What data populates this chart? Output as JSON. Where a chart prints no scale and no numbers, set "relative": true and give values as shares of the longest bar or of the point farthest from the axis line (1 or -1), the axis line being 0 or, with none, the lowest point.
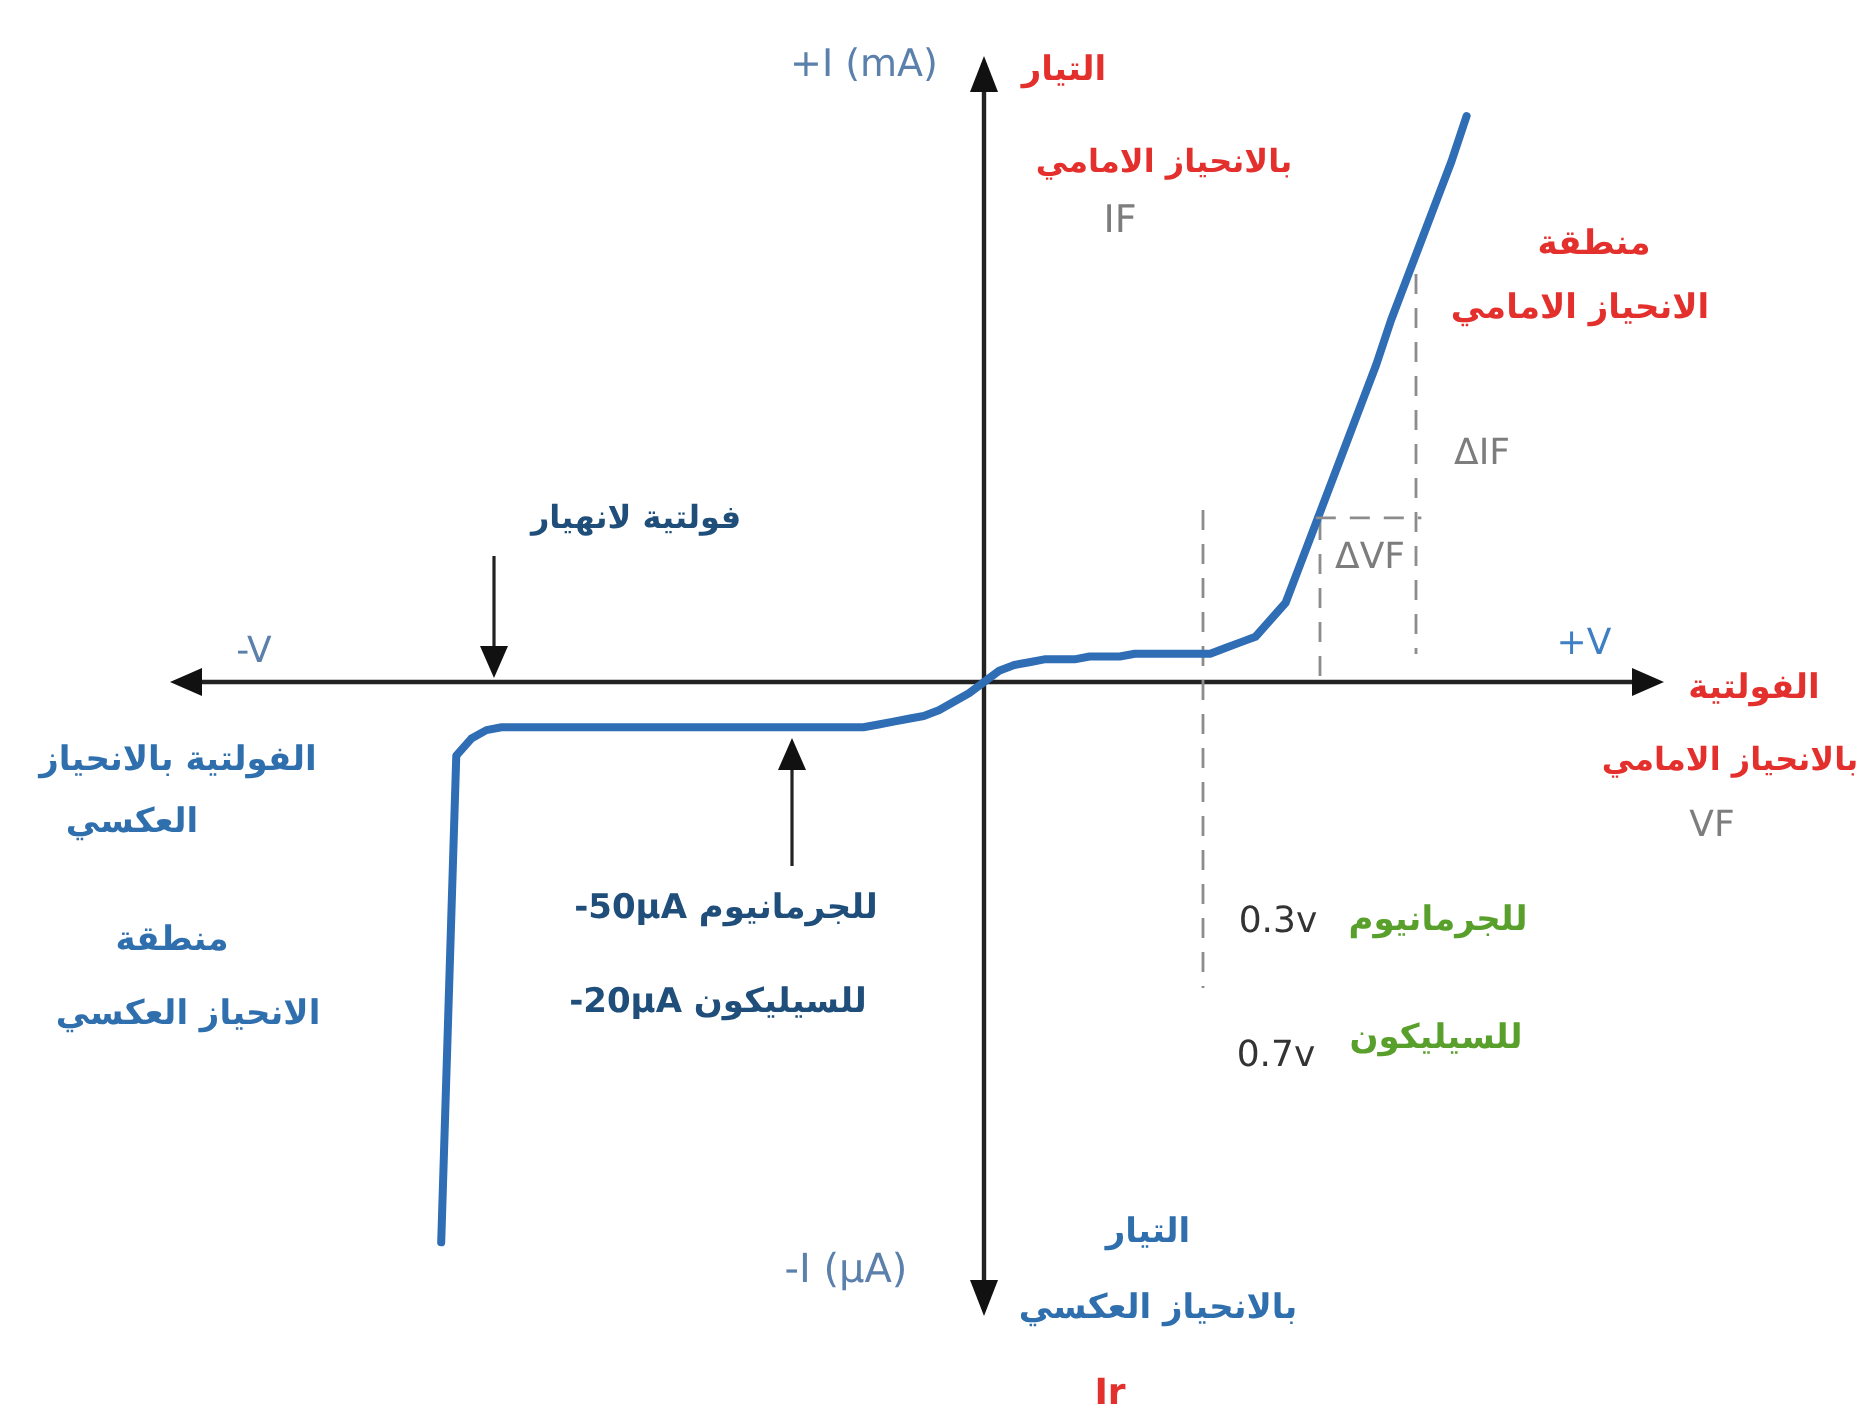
{
  "chart_data": {
    "type": "line",
    "relative": true,
    "xlabel": "+V",
    "ylabel": "+I (mA)",
    "categories": [
      null,
      null,
      null,
      null,
      null,
      null,
      null,
      null,
      null,
      null,
      null,
      null,
      null,
      null,
      null,
      null,
      null,
      null,
      null,
      null,
      null,
      null,
      null,
      null,
      null,
      null,
      null,
      null,
      null,
      null,
      null,
      null,
      null,
      null,
      null,
      null,
      null,
      null,
      null,
      null,
      null,
      null,
      null,
      null,
      null,
      null,
      null,
      null,
      null,
      null,
      null,
      null,
      null,
      null,
      null,
      null,
      null,
      null,
      null,
      null,
      null,
      null,
      null,
      null,
      null,
      null,
      null,
      null,
      null
    ],
    "series": [
      {
        "color": "#2f6db5",
        "line_style": "solid",
        "values": [
          -0.99,
          -0.13,
          -0.1,
          -0.085,
          -0.08,
          -0.08,
          -0.08,
          -0.08,
          -0.08,
          -0.08,
          -0.08,
          -0.08,
          -0.08,
          -0.08,
          -0.08,
          -0.08,
          -0.08,
          -0.08,
          -0.08,
          -0.08,
          -0.08,
          -0.08,
          -0.08,
          -0.08,
          -0.08,
          -0.08,
          -0.08,
          -0.08,
          -0.08,
          -0.075,
          -0.07,
          -0.065,
          -0.06,
          -0.05,
          -0.035,
          -0.02,
          0,
          0.02,
          0.03,
          0.035,
          0.04,
          0.04,
          0.04,
          0.045,
          0.045,
          0.045,
          0.05,
          0.05,
          0.05,
          0.05,
          0.05,
          0.05,
          0.06,
          0.07,
          0.08,
          0.11,
          0.14,
          0.21,
          0.28,
          0.35,
          0.42,
          0.49,
          0.56,
          0.64,
          0.71,
          0.78,
          0.85,
          0.92,
          1
        ]
      },
      {
        "color": "#8c8c8c",
        "line_style": "dashed",
        "values": [
          null,
          null,
          null,
          null,
          null,
          null,
          null,
          null,
          null,
          null,
          null,
          null,
          null,
          null,
          null,
          null,
          null,
          null,
          null,
          null,
          null,
          null,
          null,
          null,
          null,
          null,
          null,
          null,
          null,
          null,
          null,
          null,
          null,
          null,
          null,
          null,
          null,
          null,
          null,
          null,
          null,
          null,
          null,
          null,
          null,
          null,
          null,
          null,
          null,
          null,
          null,
          null,
          null,
          null,
          null,
          null,
          null,
          null,
          0.29,
          0.29,
          0.29,
          0.29,
          0.29,
          0.29,
          0.29,
          0.29,
          null,
          null,
          null
        ]
      }
    ],
    "annotations": [
      "التيار",
      "بالانحياز الامامي",
      "IF",
      "منطقة",
      "الانحياز الامامي",
      "ΔIF",
      "ΔVF",
      "الفولتية",
      "بالانحياز الامامي",
      "VF",
      "-V",
      "فولتية لانهيار",
      "الفولتية بالانحياز",
      "العكسي",
      "منطقة",
      "الانحياز العكسي",
      "-50µA للجرمانيوم",
      "-20µA للسيليكون",
      "0.3v",
      "للجرمانيوم",
      "0.7v",
      "للسيليكون",
      "-I (µA)",
      "التيار",
      "بالانحياز العكسي",
      "Ir"
    ]
  }
}
